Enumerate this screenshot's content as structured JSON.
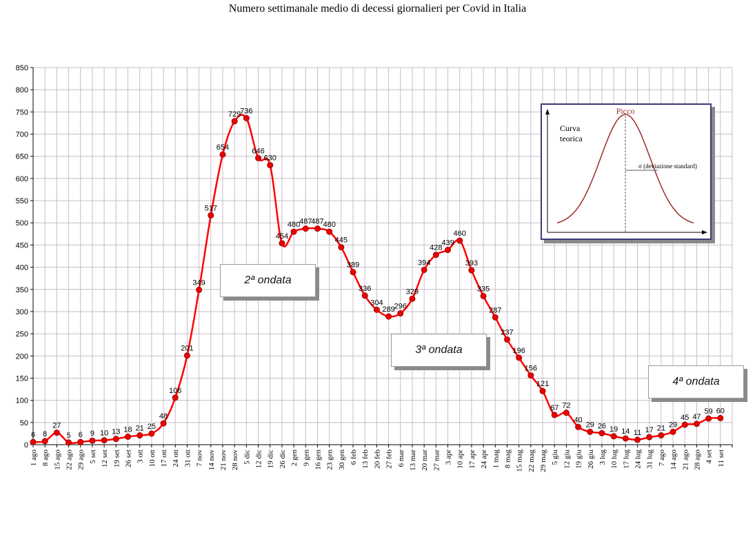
{
  "chart_data": {
    "type": "line",
    "title": "Numero settimanale medio di decessi giornalieri per Covid in Italia",
    "xlabel": "",
    "ylabel": "",
    "ylim": [
      0,
      850
    ],
    "yticks": [
      0,
      50,
      100,
      150,
      200,
      250,
      300,
      350,
      400,
      450,
      500,
      550,
      600,
      650,
      700,
      750,
      800,
      850
    ],
    "grid": true,
    "categories": [
      "1 ago",
      "8 ago",
      "15 ago",
      "22 ago",
      "29 ago",
      "5 set",
      "12 set",
      "19 set",
      "26 set",
      "3 ott",
      "10 ott",
      "17 ott",
      "24 ott",
      "31 ott",
      "7 nov",
      "14 nov",
      "21 nov",
      "28 nov",
      "5 dic",
      "12 dic",
      "19 dic",
      "26 dic",
      "2 gen",
      "9 gen",
      "16 gen",
      "23 gen",
      "30 gen",
      "6 feb",
      "13 feb",
      "20 feb",
      "27 feb",
      "6 mar",
      "13 mar",
      "20 mar",
      "27 mar",
      "3 apr",
      "10 apr",
      "17 apr",
      "24 apr",
      "1 mag",
      "8 mag",
      "15 mag",
      "22 mag",
      "29 mag",
      "5 giu",
      "12 giu",
      "19 giu",
      "26 giu",
      "3 lug",
      "10 lug",
      "17 lug",
      "24 lug",
      "31 lug",
      "7 ago",
      "14 ago",
      "21 ago",
      "28 ago",
      "4 set",
      "11 set"
    ],
    "series": [
      {
        "values": [
          6,
          8,
          27,
          5,
          6,
          9,
          10,
          13,
          18,
          21,
          25,
          48,
          106,
          201,
          349,
          517,
          654,
          729,
          736,
          646,
          630,
          454,
          480,
          487,
          487,
          480,
          445,
          389,
          336,
          304,
          289,
          296,
          329,
          394,
          428,
          439,
          460,
          393,
          335,
          287,
          237,
          196,
          156,
          121,
          67,
          72,
          40,
          29,
          26,
          19,
          14,
          11,
          17,
          21,
          29,
          45,
          47,
          59,
          60
        ],
        "color": "#ff0000"
      }
    ],
    "annotations": [
      "2ª ondata",
      "3ª ondata",
      "4ª ondata"
    ],
    "inset": {
      "peak_label": "Picco",
      "curve_label_line1": "Curva",
      "curve_label_line2": "teorica",
      "sigma_label": "σ  (deviazione standard)"
    }
  },
  "colors": {
    "line": "#ff0000",
    "marker_fill": "#ee0000",
    "marker_stroke": "#990000",
    "grid": "#c8bcc8",
    "inset_curve": "#9b2a2a"
  }
}
